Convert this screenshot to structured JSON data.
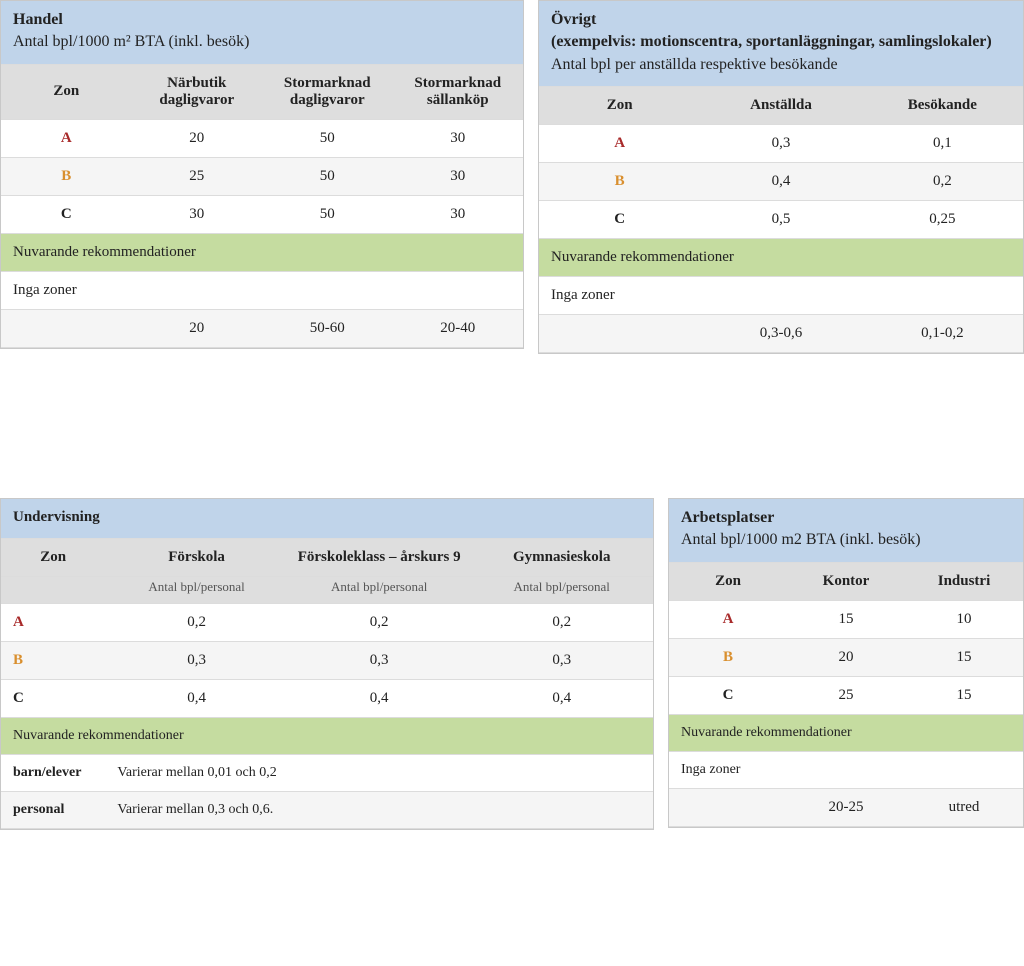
{
  "colors": {
    "header_bg": "#c0d4ea",
    "th_bg": "#dedede",
    "row_alt_bg": "#f5f5f5",
    "green_band": "#c5dca0",
    "zone_a": "#a82a2a",
    "zone_b": "#d98f2e",
    "zone_c": "#222222",
    "text": "#222222"
  },
  "handel": {
    "title": "Handel",
    "subtitle": "Antal bpl/1000 m² BTA (inkl. besök)",
    "columns": [
      "Zon",
      "Närbutik dagligvaror",
      "Stormarknad dagligvaror",
      "Stormarknad sällanköp"
    ],
    "rows": [
      {
        "zone": "A",
        "values": [
          "20",
          "50",
          "30"
        ]
      },
      {
        "zone": "B",
        "values": [
          "25",
          "50",
          "30"
        ]
      },
      {
        "zone": "C",
        "values": [
          "30",
          "50",
          "30"
        ]
      }
    ],
    "green_label": "Nuvarande rekommendationer",
    "note_row": "Inga zoner",
    "baseline": [
      "",
      "20",
      "50-60",
      "20-40"
    ]
  },
  "ovrigt": {
    "title": "Övrigt",
    "subtitle1": "(exempelvis: motionscentra, sportanläggningar, samlingslokaler)",
    "subtitle2": "Antal bpl per anställda respektive besökande",
    "columns": [
      "Zon",
      "Anställda",
      "Besökande"
    ],
    "rows": [
      {
        "zone": "A",
        "values": [
          "0,3",
          "0,1"
        ]
      },
      {
        "zone": "B",
        "values": [
          "0,4",
          "0,2"
        ]
      },
      {
        "zone": "C",
        "values": [
          "0,5",
          "0,25"
        ]
      }
    ],
    "green_label": "Nuvarande rekommendationer",
    "note_row": "Inga zoner",
    "baseline": [
      "",
      "0,3-0,6",
      "0,1-0,2"
    ]
  },
  "undervisning": {
    "title": "Undervisning",
    "columns": [
      "Zon",
      "Förskola",
      "Förskoleklass – årskurs 9",
      "Gymnasieskola"
    ],
    "sublabel": "Antal bpl/personal",
    "rows": [
      {
        "zone": "A",
        "values": [
          "0,2",
          "0,2",
          "0,2"
        ]
      },
      {
        "zone": "B",
        "values": [
          "0,3",
          "0,3",
          "0,3"
        ]
      },
      {
        "zone": "C",
        "values": [
          "0,4",
          "0,4",
          "0,4"
        ]
      }
    ],
    "green_label": "Nuvarande rekommendationer",
    "extra": [
      {
        "label": "barn/elever",
        "text": "Varierar mellan 0,01 och 0,2"
      },
      {
        "label": "personal",
        "text": "Varierar mellan 0,3 och 0,6."
      }
    ]
  },
  "arbetsplatser": {
    "title": "Arbetsplatser",
    "subtitle": "Antal bpl/1000 m2 BTA (inkl. besök)",
    "columns": [
      "Zon",
      "Kontor",
      "Industri"
    ],
    "rows": [
      {
        "zone": "A",
        "values": [
          "15",
          "10"
        ]
      },
      {
        "zone": "B",
        "values": [
          "20",
          "15"
        ]
      },
      {
        "zone": "C",
        "values": [
          "25",
          "15"
        ]
      }
    ],
    "green_label": "Nuvarande rekommendationer",
    "note_row": "Inga zoner",
    "baseline": [
      "",
      "20-25",
      "utred"
    ]
  }
}
